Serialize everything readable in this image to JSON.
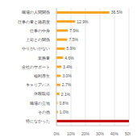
{
  "chart_data": {
    "type": "bar",
    "orientation": "horizontal",
    "categories": [
      "職場の人間関係",
      "仕事の量と難易度",
      "仕事の中身",
      "上司との関係",
      "やりがいがない",
      "業務量",
      "会社のサポート",
      "福利厚生",
      "キャリアパス",
      "休暇取得",
      "職場の立地",
      "その他",
      "特になかった"
    ],
    "values": [
      36.5,
      12.9,
      7.9,
      7.5,
      5.9,
      4.6,
      3.4,
      3.0,
      2.7,
      2.1,
      0.8,
      1.0,
      50
    ],
    "value_labels": [
      "36.5%",
      "12.9%",
      "7.9%",
      "7.5%",
      "5.9%",
      "4.6%",
      "3.4%",
      "3.0%",
      "2.7%",
      "2.1%",
      "0.8%",
      "1.0%",
      null
    ],
    "colors": [
      "#f5a623",
      "#f5a623",
      "#f5a623",
      "#f5a623",
      "#f5a623",
      "#f5a623",
      "#f5a623",
      "#f5a623",
      "#f5a623",
      "#f5a623",
      "#f5a623",
      "#f5a623",
      "#c00000"
    ],
    "xlim": [
      0,
      50
    ],
    "xticks": [
      {
        "value": 0,
        "label": "0%"
      },
      {
        "value": 10,
        "label": "10%"
      },
      {
        "value": 20,
        "label": "20%"
      },
      {
        "value": 30,
        "label": "30%"
      },
      {
        "value": 40,
        "label": "40%"
      },
      {
        "value": 50,
        "label": "50%"
      }
    ],
    "grid": true,
    "data_labels": true
  }
}
